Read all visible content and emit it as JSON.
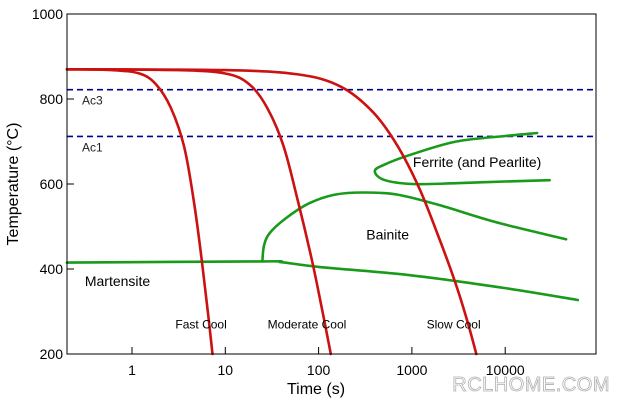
{
  "chart_data": {
    "type": "line",
    "xlabel": "Time (s)",
    "ylabel": "Temperature (°C)",
    "x_scale": "log",
    "xlim": [
      0.18,
      100000
    ],
    "ylim": [
      200,
      1000
    ],
    "x_ticks": [
      1,
      10,
      100,
      1000,
      10000
    ],
    "x_tick_labels": [
      "1",
      "10",
      "100",
      "1000",
      "10000"
    ],
    "y_ticks": [
      200,
      400,
      600,
      800,
      1000
    ],
    "y_tick_labels": [
      "200",
      "400",
      "600",
      "800",
      "1000"
    ],
    "grid": false,
    "reference_lines": [
      {
        "name": "Ac3",
        "y": 822,
        "style": "dashed",
        "color": "#00008b"
      },
      {
        "name": "Ac1",
        "y": 712,
        "style": "dashed",
        "color": "#00008b"
      }
    ],
    "cooling_curves": [
      {
        "name": "Fast Cool",
        "color": "#cc1111",
        "points": [
          [
            0.18,
            870
          ],
          [
            0.6,
            868
          ],
          [
            1.2,
            860
          ],
          [
            1.8,
            835
          ],
          [
            2.6,
            780
          ],
          [
            3.6,
            690
          ],
          [
            4.6,
            560
          ],
          [
            5.6,
            420
          ],
          [
            6.5,
            300
          ],
          [
            7.3,
            200
          ]
        ]
      },
      {
        "name": "Moderate Cool",
        "color": "#cc1111",
        "points": [
          [
            0.18,
            870
          ],
          [
            3,
            868
          ],
          [
            10,
            860
          ],
          [
            18,
            835
          ],
          [
            28,
            780
          ],
          [
            42,
            690
          ],
          [
            60,
            560
          ],
          [
            85,
            420
          ],
          [
            110,
            300
          ],
          [
            135,
            200
          ]
        ]
      },
      {
        "name": "Slow Cool",
        "color": "#cc1111",
        "points": [
          [
            0.18,
            870
          ],
          [
            10,
            868
          ],
          [
            60,
            858
          ],
          [
            170,
            830
          ],
          [
            380,
            770
          ],
          [
            700,
            690
          ],
          [
            1200,
            590
          ],
          [
            1900,
            480
          ],
          [
            2900,
            370
          ],
          [
            3900,
            280
          ],
          [
            4900,
            200
          ]
        ]
      }
    ],
    "phase_boundaries": [
      {
        "name": "ferrite-nose",
        "color": "#1a9a1a",
        "points": [
          [
            22000,
            720
          ],
          [
            10000,
            713
          ],
          [
            3000,
            700
          ],
          [
            1000,
            670
          ],
          [
            500,
            645
          ],
          [
            400,
            630
          ],
          [
            500,
            610
          ],
          [
            1000,
            600
          ],
          [
            3000,
            602
          ],
          [
            10000,
            606
          ],
          [
            30000,
            609
          ]
        ]
      },
      {
        "name": "bainite-boundary",
        "color": "#1a9a1a",
        "points": [
          [
            25,
            420
          ],
          [
            26,
            455
          ],
          [
            30,
            485
          ],
          [
            45,
            520
          ],
          [
            80,
            555
          ],
          [
            150,
            575
          ],
          [
            300,
            580
          ],
          [
            700,
            575
          ],
          [
            2000,
            550
          ],
          [
            8000,
            510
          ],
          [
            45000,
            470
          ]
        ]
      },
      {
        "name": "martensite-start",
        "color": "#1a9a1a",
        "points": [
          [
            0.18,
            415
          ],
          [
            25,
            418
          ],
          [
            40,
            416
          ],
          [
            100,
            405
          ],
          [
            1000,
            385
          ],
          [
            10000,
            355
          ],
          [
            60000,
            327
          ]
        ]
      }
    ],
    "region_labels": [
      {
        "text": "Ferrite (and Pearlite)",
        "x": 5000,
        "y": 640
      },
      {
        "text": "Bainite",
        "x": 550,
        "y": 470
      },
      {
        "text": "Martensite",
        "x": 0.7,
        "y": 360
      }
    ],
    "curve_labels": [
      {
        "text": "Fast Cool",
        "x": 5.5,
        "y": 260
      },
      {
        "text": "Moderate Cool",
        "x": 75,
        "y": 260
      },
      {
        "text": "Slow Cool",
        "x": 2800,
        "y": 260
      }
    ]
  },
  "watermark": "RCLHOME.COM"
}
